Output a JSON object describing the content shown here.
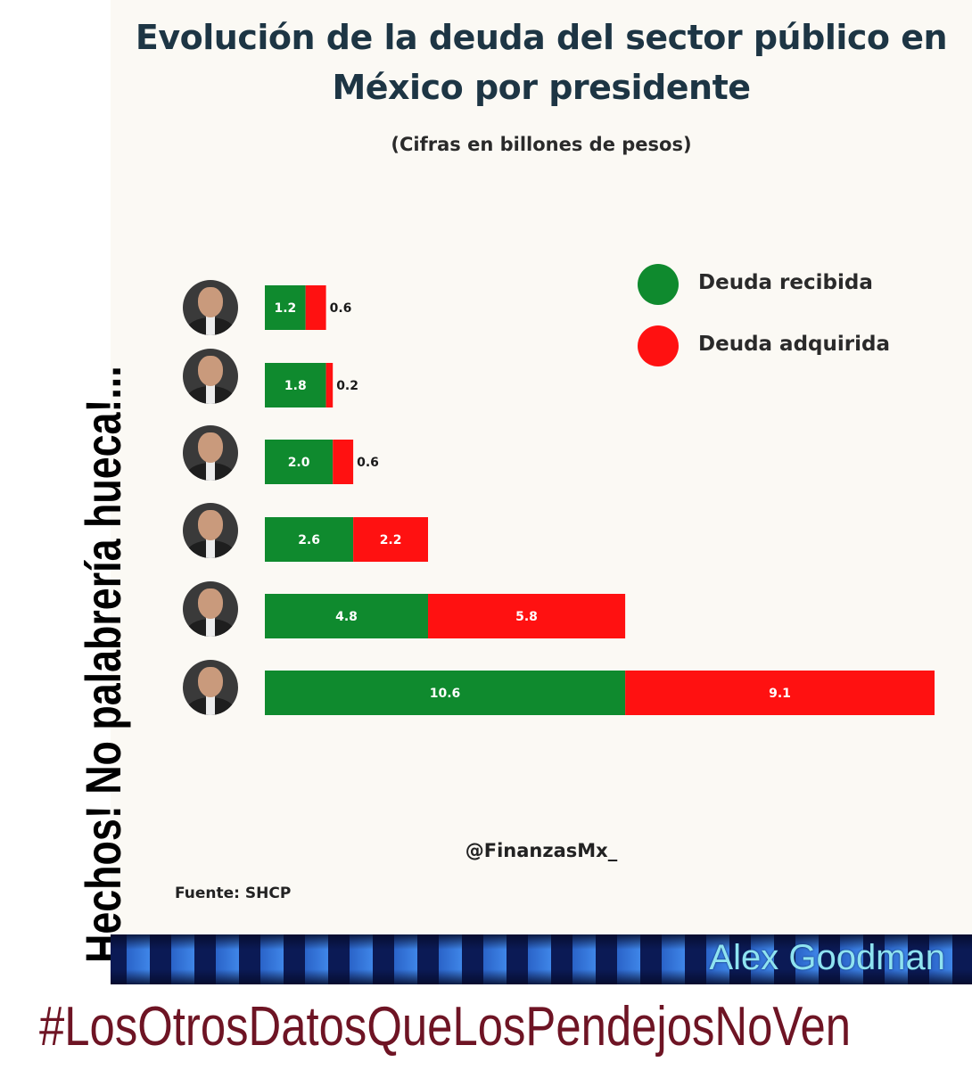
{
  "chart_data": {
    "type": "bar",
    "orientation": "horizontal",
    "stacked": true,
    "title": "Evolución de la deuda del sector público en México por presidente",
    "subtitle": "(Cifras en billones de pesos)",
    "categories": [
      "",
      "",
      "",
      "",
      "",
      ""
    ],
    "series": [
      {
        "name": "Deuda recibida",
        "color": "#0f8a2e",
        "values": [
          1.2,
          1.8,
          2.0,
          2.6,
          4.8,
          10.6
        ]
      },
      {
        "name": "Deuda adquirida",
        "color": "#ff1111",
        "values": [
          0.6,
          0.2,
          0.6,
          2.2,
          5.8,
          9.1
        ]
      }
    ],
    "xlim": [
      0,
      19.7
    ],
    "grid": false,
    "legend_position": "top-right"
  },
  "handle": "@FinanzasMx_",
  "source": "Fuente: SHCP",
  "vertical_caption": "Hechos! No palabrería hueca!...",
  "banner_name": "Alex Goodman",
  "hashtag": "#LosOtrosDatosQueLosPendejosNoVen",
  "avatar_icons": [
    "president-photo",
    "president-photo",
    "president-photo",
    "president-photo",
    "president-photo",
    "president-photo"
  ]
}
